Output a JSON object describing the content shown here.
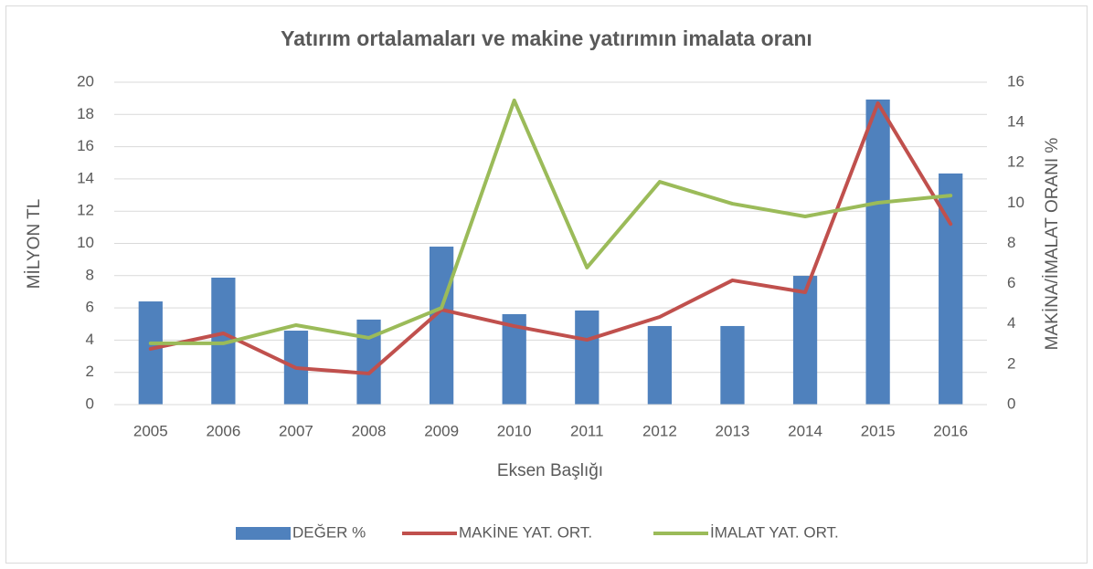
{
  "chart_data": {
    "type": "bar-line",
    "title": "Yatırım ortalamaları ve makine yatırımın imalata oranı",
    "x_label": "Eksen Başlığı",
    "y_label": "MİLYON TL",
    "y2_label": "MAKİNA/İMALAT ORANI %",
    "categories": [
      "2005",
      "2006",
      "2007",
      "2008",
      "2009",
      "2010",
      "2011",
      "2012",
      "2013",
      "2014",
      "2015",
      "2016"
    ],
    "series": [
      {
        "name": "DEĞER %",
        "type": "bar",
        "axis": "y2",
        "color": "#4f81bd",
        "values": [
          5.12,
          6.3,
          3.67,
          4.22,
          7.84,
          4.49,
          4.67,
          3.9,
          3.9,
          6.39,
          15.14,
          11.47
        ]
      },
      {
        "name": "MAKİNE YAT. ORT.",
        "type": "line",
        "color": "#c0504d",
        "values": [
          3.46,
          4.42,
          2.27,
          1.93,
          5.89,
          4.87,
          4.02,
          5.44,
          7.71,
          6.97,
          18.7,
          11.2
        ]
      },
      {
        "name": "İMALAT YAT. ORT.",
        "type": "line",
        "color": "#9bbb59",
        "values": [
          3.8,
          3.8,
          4.93,
          4.14,
          6.0,
          18.87,
          8.5,
          13.82,
          12.46,
          11.67,
          12.52,
          12.97
        ]
      }
    ],
    "ylim": [
      0,
      20
    ],
    "yticks": [
      0,
      2,
      4,
      6,
      8,
      10,
      12,
      14,
      16,
      18,
      20
    ],
    "y2lim": [
      0,
      16
    ],
    "y2ticks": [
      0,
      2,
      4,
      6,
      8,
      10,
      12,
      14,
      16
    ],
    "grid": true,
    "legend": "bottom"
  }
}
